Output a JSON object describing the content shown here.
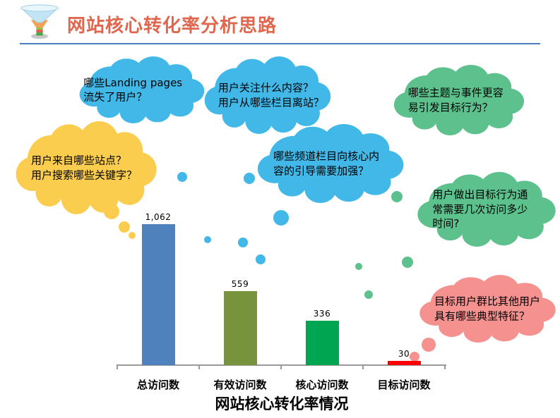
{
  "header": {
    "title": "网站核心转化率分析思路",
    "title_color": "#E0664D",
    "divider_color": "#4C7DBC",
    "icon": "funnel-icon"
  },
  "clouds": [
    {
      "id": "landing-pages",
      "text": "哪些Landing pages\n流失了用户？",
      "color": "#41B8E8"
    },
    {
      "id": "content-focus",
      "text": "用户关注什么内容？\n用户从哪些栏目离站？",
      "color": "#41B8E8"
    },
    {
      "id": "topics-events",
      "text": "哪些主题与事件更容\n易引发目标行为？",
      "color": "#5CC18C"
    },
    {
      "id": "traffic-sources",
      "text": "用户来自哪些站点？\n用户搜索哪些关键字？",
      "color": "#FBCD4F"
    },
    {
      "id": "channel-guidance",
      "text": "哪些频道栏目向核心内\n容的引导需要加强？",
      "color": "#41B8E8"
    },
    {
      "id": "visits-needed",
      "text": "用户做出目标行为通\n常需要几次访问多少\n时间?",
      "color": "#5CC18C"
    },
    {
      "id": "target-user-traits",
      "text": "目标用户群比其他用户\n具有哪些典型特征？",
      "color": "#F5918E"
    }
  ],
  "chart_data": {
    "type": "bar",
    "title": "网站核心转化率情况",
    "categories": [
      "总访问数",
      "有效访问数",
      "核心访问数",
      "目标访问数"
    ],
    "values": [
      1062,
      559,
      336,
      30
    ],
    "value_labels": [
      "1,062",
      "559",
      "336",
      "30"
    ],
    "bar_colors": [
      "#4F81BD",
      "#77933C",
      "#00A551",
      "#FF0000"
    ],
    "xlabel": "",
    "ylabel": "",
    "ylim": [
      0,
      1062
    ],
    "grid": false,
    "legend": false,
    "axis_color": "#9A9A9A"
  }
}
